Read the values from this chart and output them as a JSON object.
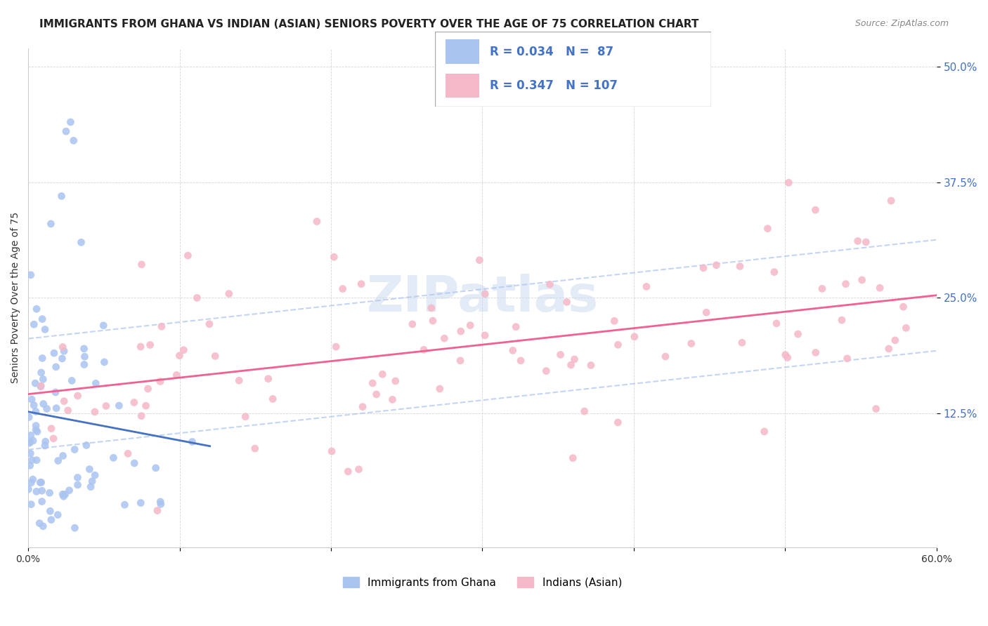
{
  "title": "IMMIGRANTS FROM GHANA VS INDIAN (ASIAN) SENIORS POVERTY OVER THE AGE OF 75 CORRELATION CHART",
  "source": "Source: ZipAtlas.com",
  "ylabel": "Seniors Poverty Over the Age of 75",
  "xlabel_ticks": [
    "0.0%",
    "60.0%"
  ],
  "ytick_labels": [
    "12.5%",
    "25.0%",
    "37.5%",
    "50.0%"
  ],
  "xlim": [
    0.0,
    0.6
  ],
  "ylim": [
    -0.02,
    0.52
  ],
  "legend_bottom": [
    "Immigrants from Ghana",
    "Indians (Asian)"
  ],
  "ghana_R": "0.034",
  "ghana_N": "87",
  "indian_R": "0.347",
  "indian_N": "107",
  "ghana_color": "#aac4f0",
  "indian_color": "#f5b8c8",
  "ghana_line_color": "#4472c4",
  "indian_line_color": "#f06090",
  "watermark": "ZIPatlas",
  "title_fontsize": 11,
  "axis_label_fontsize": 10,
  "legend_fontsize": 11
}
